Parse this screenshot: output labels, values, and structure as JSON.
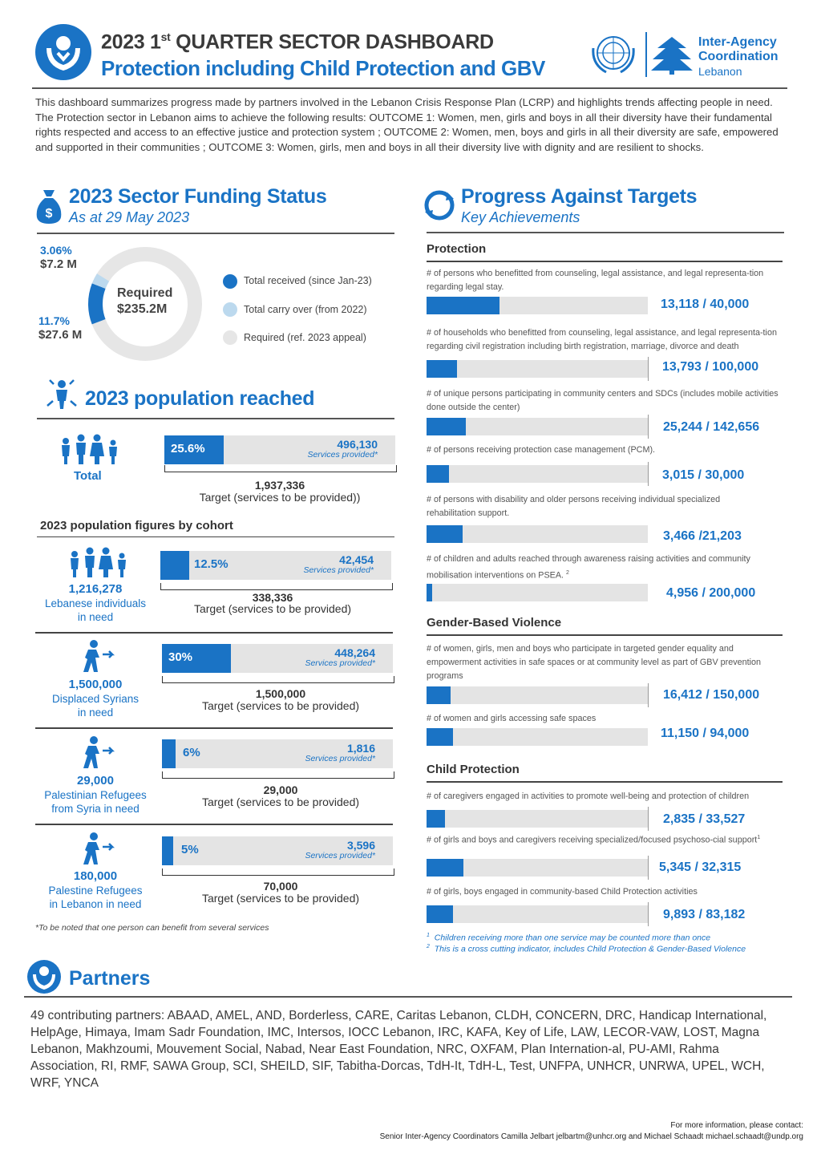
{
  "header": {
    "title_prefix": "2023 1",
    "title_sup": "st",
    "title_suffix": " QUARTER SECTOR DASHBOARD",
    "subtitle": "Protection including Child Protection and GBV",
    "org_line1": "Inter-Agency",
    "org_line2": "Coordination",
    "org_line3": "Lebanon"
  },
  "intro": "This dashboard summarizes progress made by partners involved in the Lebanon Crisis Response Plan (LCRP) and highlights trends affecting people in need. The Protection sector in Lebanon aims to achieve the following results: OUTCOME 1: Women, men, girls and boys in all their diversity have their fundamental rights respected and access to an effective justice and protection system ; OUTCOME 2: Women, men, boys and girls in all their diversity are safe, empowered and supported in their communities ; OUTCOME 3: Women, girls, men and boys in all their diversity live with dignity and are resilient to shocks.",
  "funding": {
    "title": "2023 Sector Funding Status",
    "subtitle": "As at 29 May 2023",
    "carry_pct": "3.06%",
    "carry_amt": "$7.2 M",
    "received_pct": "11.7%",
    "received_amt": "$27.6 M",
    "required_label": "Required",
    "required_amt": "$235.2M",
    "legend": [
      "Total received (since Jan-23)",
      "Total carry over (from 2022)",
      "Required (ref. 2023 appeal)"
    ],
    "colors": {
      "received": "#1a73c5",
      "carry": "#bcd9ee",
      "required": "#e6e6e6"
    },
    "received_fraction": 0.117,
    "carry_fraction": 0.0306
  },
  "population": {
    "title": "2023 population reached",
    "total": {
      "label": "Total",
      "pct": "25.6%",
      "fraction": 0.256,
      "value": "496,130",
      "value_sub": "Services provided*",
      "target": "1,937,336",
      "target_label": "Target (services to be provided))"
    },
    "cohort_title": "2023 population figures by cohort",
    "cohorts": [
      {
        "num": "1,216,278",
        "label1": "Lebanese individuals",
        "label2": "in need",
        "pct": "12.5%",
        "fraction": 0.125,
        "value": "42,454",
        "value_sub": "Services provided*",
        "target": "338,336",
        "target_label": "Target (services to be provided)"
      },
      {
        "num": "1,500,000",
        "label1": "Displaced Syrians",
        "label2": "in need",
        "pct": "30%",
        "fraction": 0.3,
        "value": "448,264",
        "value_sub": "Services provided*",
        "target": "1,500,000",
        "target_label": "Target (services to be provided)"
      },
      {
        "num": "29,000",
        "label1": "Palestinian Refugees",
        "label2": "from Syria in need",
        "pct": "6%",
        "fraction": 0.06,
        "value": "1,816",
        "value_sub": "Services provided*",
        "target": "29,000",
        "target_label": "Target (services to be provided)"
      },
      {
        "num": "180,000",
        "label1": "Palestine Refugees",
        "label2": "in Lebanon in need",
        "pct": "5%",
        "fraction": 0.05,
        "value": "3,596",
        "value_sub": "Services provided*",
        "target": "70,000",
        "target_label": "Target (services to be provided)"
      }
    ],
    "note": "*To be noted that one person can benefit from several services"
  },
  "progress": {
    "title": "Progress Against Targets",
    "subtitle": "Key Achievements",
    "groups": [
      {
        "name": "Protection",
        "items": [
          {
            "text": "# of persons who benefitted from counseling, legal assistance, and legal representa-tion regarding legal stay.",
            "value": "13,118 / 40,000",
            "fraction": 0.328
          },
          {
            "text": "# of households who benefitted from counseling, legal assistance, and legal representa-tion regarding civil registration including birth registration, marriage, divorce and death",
            "value": "13,793 / 100,000",
            "fraction": 0.138
          },
          {
            "text": "# of unique persons participating in community centers and SDCs (includes mobile activities done outside the center)",
            "value": "25,244 / 142,656",
            "fraction": 0.177
          },
          {
            "text": "# of persons receiving protection case management (PCM).",
            "value": "3,015 / 30,000",
            "fraction": 0.1
          },
          {
            "text": "# of persons with disability and older persons receiving individual specialized rehabilitation support.",
            "value": "3,466 /21,203",
            "fraction": 0.163
          },
          {
            "text": "# of children and adults reached through awareness raising activities and community mobilisation interventions on PSEA.",
            "sup": "2",
            "value": "4,956 / 200,000",
            "fraction": 0.025
          }
        ]
      },
      {
        "name": "Gender-Based Violence",
        "items": [
          {
            "text": "# of women, girls, men and boys who participate in targeted gender equality and empowerment activities in safe spaces or at community level as part of GBV prevention programs",
            "value": "16,412 / 150,000",
            "fraction": 0.109
          },
          {
            "text": "# of women and girls accessing safe spaces",
            "value": "11,150 / 94,000",
            "fraction": 0.119
          }
        ]
      },
      {
        "name": "Child Protection",
        "items": [
          {
            "text": "# of caregivers engaged in activities to promote well-being and protection of children",
            "value": "2,835 / 33,527",
            "fraction": 0.085
          },
          {
            "text": "# of girls and boys and caregivers receiving specialized/focused psychoso-cial support",
            "sup": "1",
            "value": "5,345 / 32,315",
            "fraction": 0.165
          },
          {
            "text": "# of girls, boys engaged in community-based Child Protection activities",
            "value": "9,893 / 83,182",
            "fraction": 0.119
          }
        ]
      }
    ],
    "footnotes": [
      {
        "mark": "1",
        "text": "Children receiving more than one service may be counted more than once"
      },
      {
        "mark": "2",
        "text": "This is a cross cutting indicator, includes Child Protection & Gender-Based Violence"
      }
    ]
  },
  "partners": {
    "title": "Partners",
    "text": "49 contributing partners: ABAAD, AMEL, AND, Borderless, CARE, Caritas Lebanon, CLDH, CONCERN, DRC, Handicap International, HelpAge, Himaya, Imam Sadr Foundation, IMC, Intersos, IOCC Lebanon, IRC, KAFA, Key of Life, LAW, LECOR-VAW, LOST, Magna Lebanon, Makhzoumi, Mouvement Social, Nabad, Near East Foundation, NRC, OXFAM, Plan Internation-al, PU-AMI, Rahma Association, RI, RMF, SAWA Group, SCI, SHEILD, SIF, Tabitha-Dorcas, TdH-It, TdH-L, Test, UNFPA, UNHCR, UNRWA, UPEL, WCH, WRF, YNCA"
  },
  "contact": {
    "line1": "For more information, please contact:",
    "line2": "Senior Inter-Agency Coordinators Camilla Jelbart jelbartm@unhcr.org and Michael Schaadt michael.schaadt@undp.org"
  }
}
